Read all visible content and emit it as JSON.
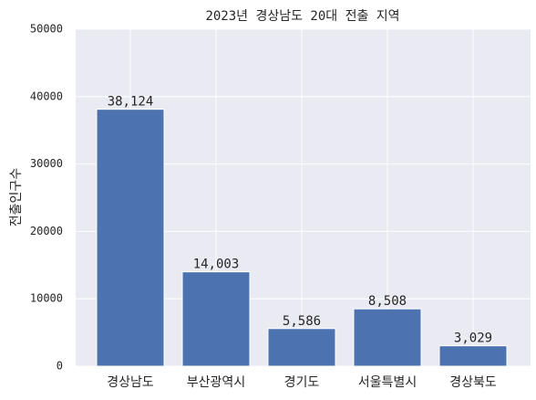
{
  "chart_data": {
    "type": "bar",
    "title": "2023년 경상남도 20대 전출 지역",
    "ylabel": "전출인구수",
    "categories": [
      "경상남도",
      "부산광역시",
      "경기도",
      "서울특별시",
      "경상북도"
    ],
    "values": [
      38124,
      14003,
      5586,
      8508,
      3029
    ],
    "value_labels": [
      "38,124",
      "14,003",
      "5,586",
      "8,508",
      "3,029"
    ],
    "color": "#4c72b0",
    "ylim": [
      0,
      50000
    ],
    "yticks": [
      0,
      10000,
      20000,
      30000,
      40000,
      50000
    ],
    "grid": true
  }
}
